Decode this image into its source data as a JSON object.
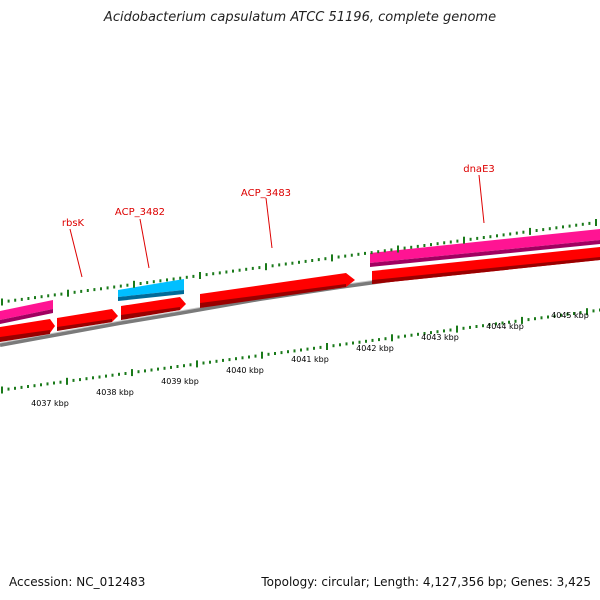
{
  "title": "Acidobacterium capsulatum ATCC 51196, complete genome",
  "footer": {
    "accession": "Accession: NC_012483",
    "summary": "Topology: circular; Length: 4,127,356 bp; Genes: 3,425"
  },
  "colors": {
    "strand_plus": "#ff1493",
    "gene_red": "#ff0000",
    "gene_cyan": "#00bfff",
    "backbone": "#888888",
    "ticks": "#1a7a1a",
    "label": "#dd0000"
  },
  "scale": {
    "unit": "kbp",
    "labels": [
      "4037 kbp",
      "4038 kbp",
      "4039 kbp",
      "4040 kbp",
      "4041 kbp",
      "4042 kbp",
      "4043 kbp",
      "4044 kbp",
      "4045 kbp"
    ]
  },
  "genes": {
    "labeled": [
      {
        "name": "rbsK",
        "color": "red"
      },
      {
        "name": "ACP_3482",
        "color": "cyan"
      },
      {
        "name": "ACP_3483",
        "color": "red"
      },
      {
        "name": "dnaE3",
        "color": "pink"
      }
    ]
  }
}
